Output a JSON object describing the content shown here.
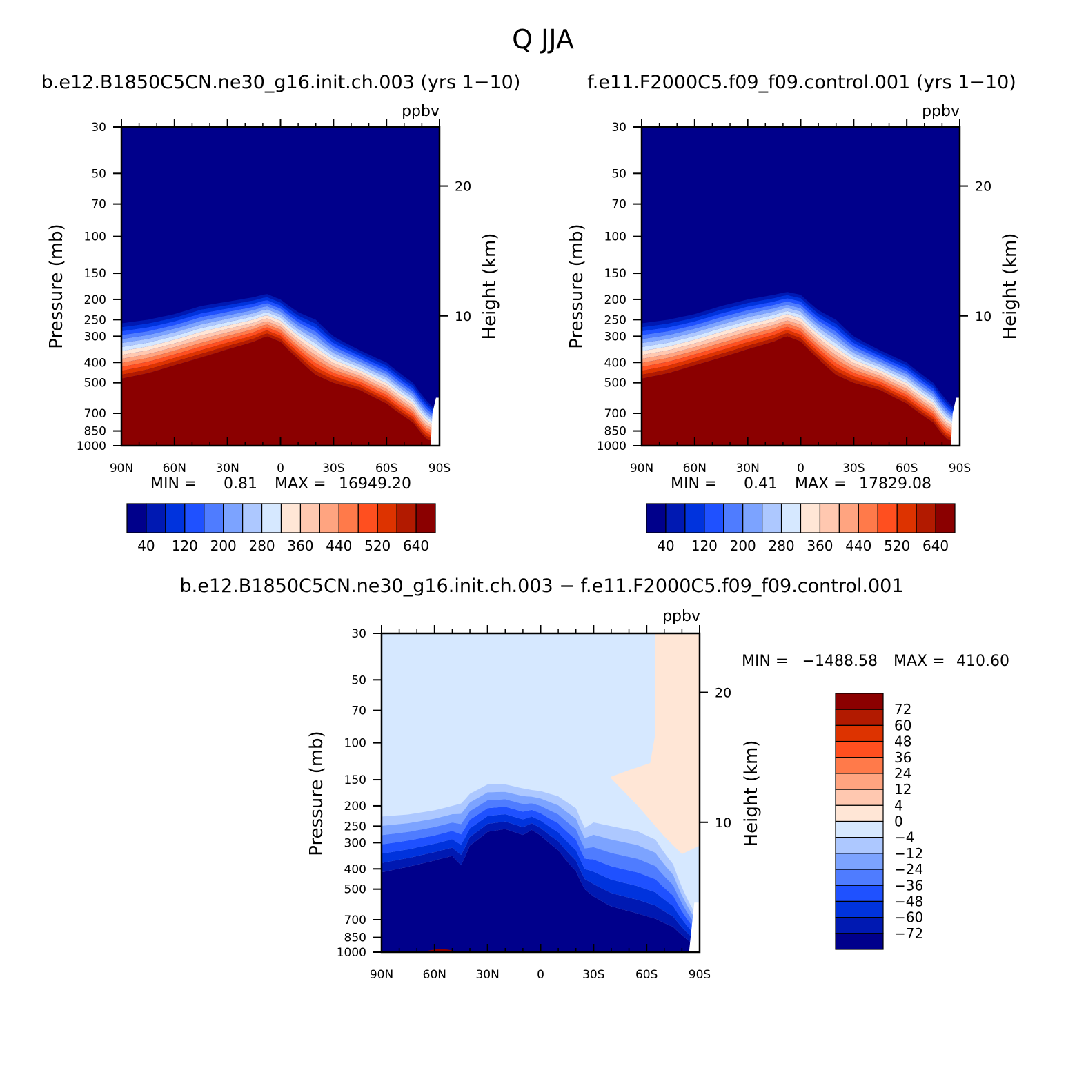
{
  "page_title": "Q  JJA",
  "colors": {
    "abs_scale": [
      "#00008b",
      "#0019b2",
      "#0033dd",
      "#1f51ff",
      "#4f7cff",
      "#7ca3ff",
      "#adc8ff",
      "#d6e8ff",
      "#ffe6d6",
      "#ffc8b0",
      "#ffa480",
      "#ff7a4a",
      "#ff4f1f",
      "#dd3300",
      "#b21a00",
      "#8b0000"
    ],
    "diff_scale": [
      "#00008b",
      "#0019b2",
      "#0033dd",
      "#1f51ff",
      "#4f7cff",
      "#7ca3ff",
      "#adc8ff",
      "#d6e8ff",
      "#ffe6d6",
      "#ffc8b0",
      "#ffa480",
      "#ff7a4a",
      "#ff4f1f",
      "#dd3300",
      "#b21a00",
      "#8b0000"
    ]
  },
  "chart_data": [
    {
      "type": "contour",
      "title": "b.e12.B1850C5CN.ne30_g16.init.ch.003 (yrs 1−10)",
      "units": "ppbv",
      "xlabel": "",
      "ylabel": "Pressure (mb)",
      "ylabel_right": "Height (km)",
      "x_ticks": [
        "90N",
        "60N",
        "30N",
        "0",
        "30S",
        "60S",
        "90S"
      ],
      "x_tick_lats": [
        90,
        60,
        30,
        0,
        -30,
        -60,
        -90
      ],
      "y_ticks": [
        30,
        50,
        70,
        100,
        150,
        200,
        250,
        300,
        400,
        500,
        700,
        850,
        1000
      ],
      "ylim": [
        1000,
        30
      ],
      "y_ticks_right": [
        10,
        20
      ],
      "min_label": "MIN =",
      "min_value": "0.81",
      "max_label": "MAX =",
      "max_value": "16949.20",
      "colorbar_labels": [
        "40",
        "120",
        "200",
        "280",
        "360",
        "440",
        "520",
        "640"
      ],
      "colorbar_levels": [
        20,
        40,
        80,
        120,
        160,
        200,
        240,
        280,
        320,
        360,
        400,
        440,
        480,
        520,
        560,
        640
      ],
      "tropopause_profile": {
        "lat": [
          90,
          75,
          60,
          45,
          30,
          15,
          8,
          0,
          -10,
          -20,
          -30,
          -45,
          -60,
          -75,
          -82,
          -90
        ],
        "p_dark": [
          500,
          470,
          430,
          395,
          360,
          330,
          310,
          330,
          400,
          480,
          520,
          560,
          650,
          800,
          950,
          1000
        ],
        "p_top": [
          260,
          250,
          235,
          215,
          205,
          195,
          188,
          200,
          230,
          250,
          300,
          350,
          400,
          500,
          600,
          700
        ]
      }
    },
    {
      "type": "contour",
      "title": "f.e11.F2000C5.f09_f09.control.001 (yrs 1−10)",
      "units": "ppbv",
      "xlabel": "",
      "ylabel": "Pressure (mb)",
      "ylabel_right": "Height (km)",
      "x_ticks": [
        "90N",
        "60N",
        "30N",
        "0",
        "30S",
        "60S",
        "90S"
      ],
      "x_tick_lats": [
        90,
        60,
        30,
        0,
        -30,
        -60,
        -90
      ],
      "y_ticks": [
        30,
        50,
        70,
        100,
        150,
        200,
        250,
        300,
        400,
        500,
        700,
        850,
        1000
      ],
      "ylim": [
        1000,
        30
      ],
      "y_ticks_right": [
        10,
        20
      ],
      "min_label": "MIN =",
      "min_value": "0.41",
      "max_label": "MAX =",
      "max_value": "17829.08",
      "colorbar_labels": [
        "40",
        "120",
        "200",
        "280",
        "360",
        "440",
        "520",
        "640"
      ],
      "colorbar_levels": [
        20,
        40,
        80,
        120,
        160,
        200,
        240,
        280,
        320,
        360,
        400,
        440,
        480,
        520,
        560,
        640
      ],
      "tropopause_profile": {
        "lat": [
          90,
          75,
          60,
          45,
          30,
          15,
          8,
          0,
          -10,
          -20,
          -30,
          -45,
          -60,
          -75,
          -82,
          -90
        ],
        "p_dark": [
          500,
          470,
          430,
          395,
          360,
          330,
          310,
          330,
          400,
          480,
          520,
          560,
          650,
          800,
          950,
          1000
        ],
        "p_top": [
          260,
          250,
          235,
          215,
          200,
          190,
          184,
          190,
          225,
          250,
          300,
          350,
          400,
          500,
          600,
          700
        ]
      }
    },
    {
      "type": "contour",
      "title": "b.e12.B1850C5CN.ne30_g16.init.ch.003 − f.e11.F2000C5.f09_f09.control.001",
      "units": "ppbv",
      "xlabel": "",
      "ylabel": "Pressure (mb)",
      "ylabel_right": "Height (km)",
      "x_ticks": [
        "90N",
        "60N",
        "30N",
        "0",
        "30S",
        "60S",
        "90S"
      ],
      "x_tick_lats": [
        90,
        60,
        30,
        0,
        -30,
        -60,
        -90
      ],
      "y_ticks": [
        30,
        50,
        70,
        100,
        150,
        200,
        250,
        300,
        400,
        500,
        700,
        850,
        1000
      ],
      "ylim": [
        1000,
        30
      ],
      "y_ticks_right": [
        10,
        20
      ],
      "min_label": "MIN =",
      "min_value": "−1488.58",
      "max_label": "MAX =",
      "max_value": "410.60",
      "colorbar_labels": [
        "72",
        "60",
        "48",
        "36",
        "24",
        "12",
        "4",
        "0",
        "−4",
        "−12",
        "−24",
        "−36",
        "−48",
        "−60",
        "−72"
      ],
      "colorbar_levels": [
        -72,
        -60,
        -48,
        -36,
        -24,
        -12,
        -4,
        0,
        4,
        12,
        24,
        36,
        48,
        60,
        72
      ],
      "negative_profile": {
        "lat": [
          90,
          75,
          60,
          50,
          45,
          40,
          30,
          20,
          10,
          5,
          0,
          -10,
          -20,
          -25,
          -30,
          -40,
          -55,
          -65,
          -75,
          -85,
          -90
        ],
        "p_darkest": [
          460,
          430,
          400,
          380,
          430,
          340,
          290,
          280,
          300,
          280,
          300,
          360,
          460,
          560,
          620,
          700,
          760,
          800,
          850,
          960,
          1000
        ],
        "p_top": [
          225,
          220,
          210,
          200,
          195,
          175,
          158,
          158,
          165,
          168,
          170,
          180,
          205,
          255,
          240,
          250,
          265,
          290,
          380,
          600,
          700
        ]
      },
      "positive_region": {
        "lat": [
          -65,
          -65,
          -62,
          -50,
          -40,
          -40,
          -55,
          -70,
          -80,
          -90,
          -90
        ],
        "p": [
          30,
          90,
          125,
          135,
          145,
          148,
          200,
          280,
          340,
          310,
          30
        ]
      }
    }
  ]
}
